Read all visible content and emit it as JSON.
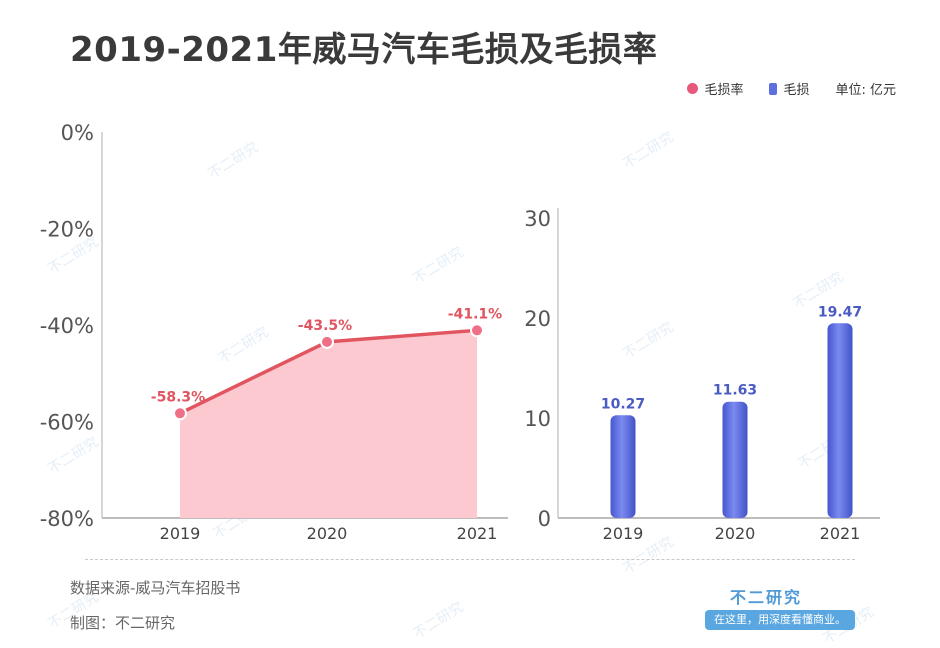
{
  "title": "2019-2021年威马汽车毛损及毛损率",
  "legend": {
    "rate": "毛损率",
    "loss": "毛损",
    "unit": "单位: 亿元"
  },
  "footer": {
    "source": "数据来源-威马汽车招股书",
    "maker": "制图：不二研究"
  },
  "brand": {
    "name": "不二研究",
    "slogan": "在这里，用深度看懂商业。",
    "watermark": "不二研究"
  },
  "colors": {
    "line": "#e05560",
    "area": "#fbc9cf",
    "point": "#ef6f86",
    "bar": "#5c6ee0",
    "barLabel": "#4b5bc4"
  },
  "chart_data": [
    {
      "type": "area",
      "series": [
        {
          "name": "毛损率",
          "x": [
            "2019",
            "2020",
            "2021"
          ],
          "values": [
            -58.3,
            -43.5,
            -41.1
          ]
        }
      ],
      "data_labels": [
        "-58.3%",
        "-43.5%",
        "-41.1%"
      ],
      "y_ticks": [
        "0%",
        "-20%",
        "-40%",
        "-60%",
        "-80%"
      ],
      "ylim": [
        -80,
        0
      ]
    },
    {
      "type": "bar",
      "categories": [
        "2019",
        "2020",
        "2021"
      ],
      "series": [
        {
          "name": "毛损",
          "values": [
            10.27,
            11.63,
            19.47
          ]
        }
      ],
      "data_labels": [
        "10.27",
        "11.63",
        "19.47"
      ],
      "y_ticks": [
        "30",
        "20",
        "10",
        "0"
      ],
      "ylim": [
        0,
        30
      ]
    }
  ]
}
